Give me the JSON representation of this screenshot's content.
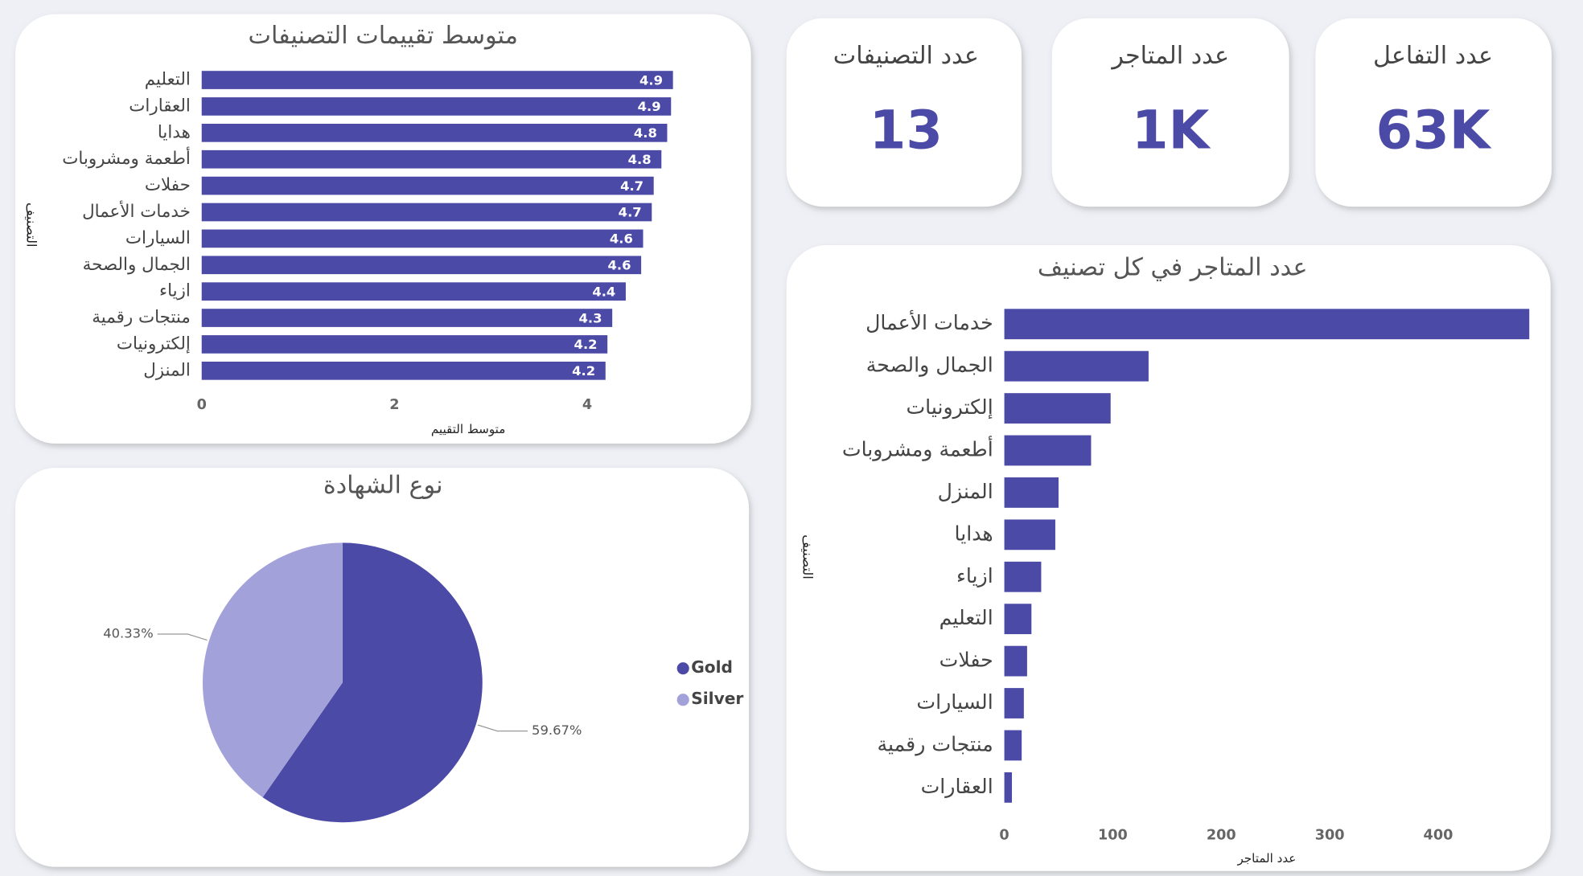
{
  "cards": [
    {
      "label": "عدد التصنيفات",
      "value": "13"
    },
    {
      "label": "عدد المتاجر",
      "value": "1K"
    },
    {
      "label": "عدد التفاعل",
      "value": "63K"
    }
  ],
  "chart_data": [
    {
      "type": "bar",
      "orientation": "horizontal",
      "title": "متوسط تقييمات التصنيفات",
      "x_label": "متوسط التقييم",
      "y_label": "التصنيف",
      "color": "#4b4aa6",
      "categories": [
        "التعليم",
        "العقارات",
        "هدايا",
        "أطعمة ومشروبات",
        "حفلات",
        "خدمات الأعمال",
        "السيارات",
        "الجمال والصحة",
        "ازياء",
        "منتجات رقمية",
        "إلكترونيات",
        "المنزل"
      ],
      "values": [
        4.89,
        4.87,
        4.83,
        4.77,
        4.69,
        4.67,
        4.58,
        4.56,
        4.4,
        4.26,
        4.21,
        4.19
      ],
      "value_labels": [
        "4.9",
        "4.9",
        "4.8",
        "4.8",
        "4.7",
        "4.7",
        "4.6",
        "4.6",
        "4.4",
        "4.3",
        "4.2",
        "4.2"
      ],
      "xlim": [
        0,
        4.9
      ],
      "xticks": [
        0,
        2,
        4
      ]
    },
    {
      "type": "pie",
      "title": "نوع الشهادة",
      "categories": [
        "Gold",
        "Silver"
      ],
      "values": [
        59.67,
        40.33
      ],
      "value_labels": [
        "59.67%",
        "40.33%"
      ],
      "colors": [
        "#4b4aa6",
        "#a3a1da"
      ],
      "legend": "right"
    },
    {
      "type": "bar",
      "orientation": "horizontal",
      "title": "عدد المتاجر في كل تصنيف",
      "x_label": "عدد المتاجر",
      "y_label": "التصنيف",
      "color": "#4b4aa6",
      "categories": [
        "خدمات الأعمال",
        "الجمال والصحة",
        "إلكترونيات",
        "أطعمة ومشروبات",
        "المنزل",
        "هدايا",
        "ازياء",
        "التعليم",
        "حفلات",
        "السيارات",
        "منتجات رقمية",
        "العقارات"
      ],
      "values": [
        484,
        133,
        98,
        80,
        50,
        47,
        34,
        25,
        21,
        18,
        16,
        7
      ],
      "xlim": [
        0,
        484
      ],
      "xticks": [
        0,
        100,
        200,
        300,
        400
      ]
    }
  ]
}
